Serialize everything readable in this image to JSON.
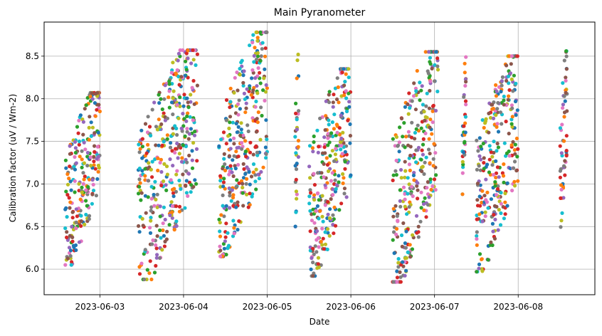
{
  "chart_data": {
    "type": "scatter",
    "title": "Main Pyranometer",
    "xlabel": "Date",
    "ylabel": "Calibration factor (uV / Wm-2)",
    "x_axis": "date",
    "xlim": [
      "2023-06-02 08:00",
      "2023-06-08 22:00"
    ],
    "ylim": [
      5.7,
      8.9
    ],
    "x_ticks": [
      "2023-06-03",
      "2023-06-04",
      "2023-06-05",
      "2023-06-06",
      "2023-06-07",
      "2023-06-08"
    ],
    "y_ticks": [
      6.0,
      6.5,
      7.0,
      7.5,
      8.0,
      8.5
    ],
    "grid": true,
    "series_colors": [
      "#1f77b4",
      "#ff7f0e",
      "#2ca02c",
      "#d62728",
      "#9467bd",
      "#8c564b",
      "#e377c2",
      "#7f7f7f",
      "#bcbd22",
      "#17becf"
    ],
    "clusters": [
      {
        "start": "2023-06-02 14:00",
        "end": "2023-06-03 00:00",
        "low": 6.05,
        "high": 8.07
      },
      {
        "start": "2023-06-03 11:00",
        "end": "2023-06-04 04:00",
        "low": 5.88,
        "high": 8.57
      },
      {
        "start": "2023-06-04 10:00",
        "end": "2023-06-05 00:00",
        "low": 6.15,
        "high": 8.78
      },
      {
        "start": "2023-06-05 08:00",
        "end": "2023-06-05 09:00",
        "low": 6.5,
        "high": 8.52
      },
      {
        "start": "2023-06-05 12:00",
        "end": "2023-06-06 00:00",
        "low": 5.92,
        "high": 8.35
      },
      {
        "start": "2023-06-06 12:00",
        "end": "2023-06-07 01:00",
        "low": 5.85,
        "high": 8.55
      },
      {
        "start": "2023-06-07 08:00",
        "end": "2023-06-07 09:00",
        "low": 6.88,
        "high": 8.49
      },
      {
        "start": "2023-06-07 12:00",
        "end": "2023-06-08 00:00",
        "low": 5.97,
        "high": 8.5
      },
      {
        "start": "2023-06-08 12:00",
        "end": "2023-06-08 14:00",
        "low": 6.47,
        "high": 8.56
      }
    ]
  }
}
